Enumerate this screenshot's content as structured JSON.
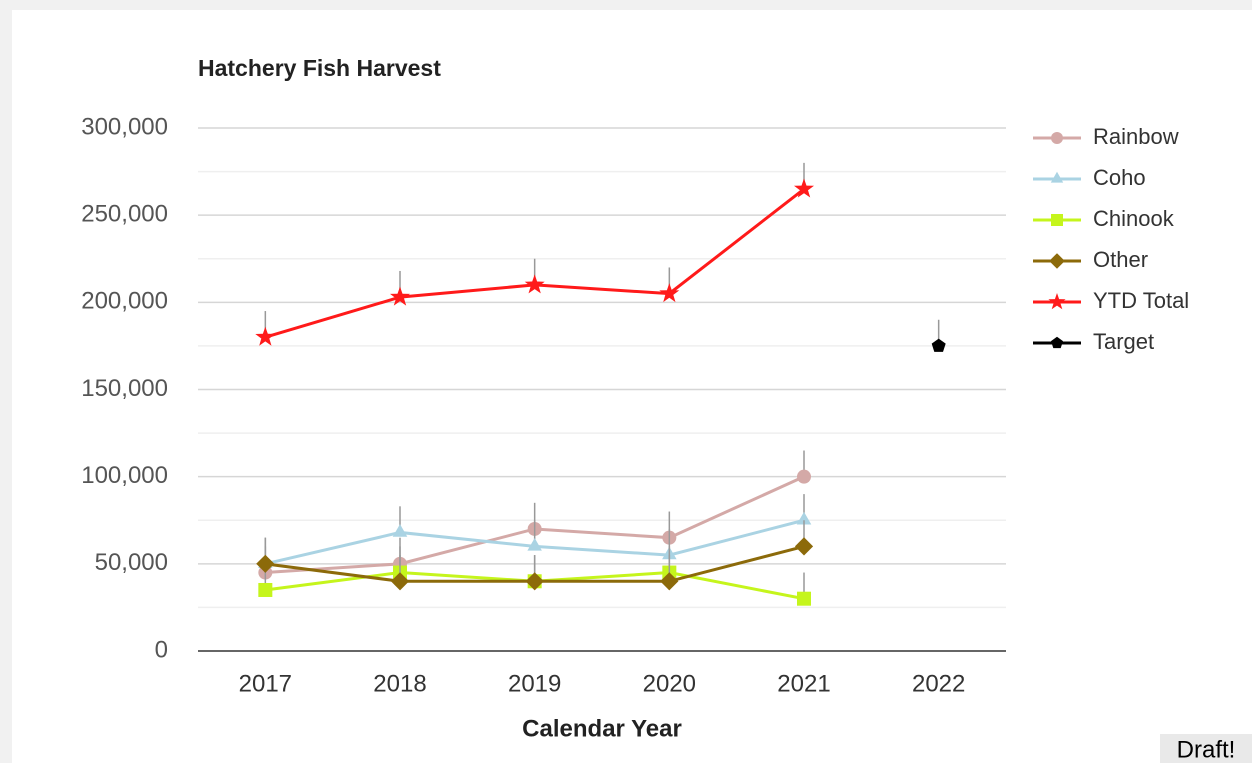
{
  "chart_data": {
    "type": "line",
    "title": "Hatchery Fish Harvest",
    "x_label": "Calendar Year",
    "categories": [
      "2017",
      "2018",
      "2019",
      "2020",
      "2021",
      "2022"
    ],
    "series": [
      {
        "name": "Rainbow",
        "color": "#d4a9a7",
        "marker": "circle",
        "values": [
          45000,
          50000,
          70000,
          65000,
          100000,
          null
        ],
        "errors": [
          15000,
          15000,
          15000,
          15000,
          15000,
          null
        ]
      },
      {
        "name": "Coho",
        "color": "#aad3e3",
        "marker": "triangle",
        "values": [
          50000,
          68000,
          60000,
          55000,
          75000,
          null
        ],
        "errors": [
          15000,
          15000,
          15000,
          15000,
          15000,
          null
        ]
      },
      {
        "name": "Chinook",
        "color": "#c5f51c",
        "marker": "square",
        "values": [
          35000,
          45000,
          40000,
          45000,
          30000,
          null
        ],
        "errors": [
          15000,
          15000,
          15000,
          15000,
          15000,
          null
        ]
      },
      {
        "name": "Other",
        "color": "#8c6a0a",
        "marker": "diamond",
        "values": [
          50000,
          40000,
          40000,
          40000,
          60000,
          null
        ],
        "errors": [
          15000,
          15000,
          15000,
          15000,
          15000,
          null
        ]
      },
      {
        "name": "YTD Total",
        "color": "#ff1a1a",
        "marker": "star",
        "values": [
          180000,
          203000,
          210000,
          205000,
          265000,
          null
        ],
        "errors": [
          15000,
          15000,
          15000,
          15000,
          15000,
          null
        ]
      },
      {
        "name": "Target",
        "color": "#000000",
        "marker": "pentagon",
        "values": [
          null,
          null,
          null,
          null,
          null,
          175000
        ],
        "errors": [
          null,
          null,
          null,
          null,
          null,
          15000
        ]
      }
    ],
    "ylim": [
      0,
      300000
    ],
    "yticks": [
      {
        "value": 0,
        "label": "0"
      },
      {
        "value": 50000,
        "label": "50,000"
      },
      {
        "value": 100000,
        "label": "100,000"
      },
      {
        "value": 150000,
        "label": "150,000"
      },
      {
        "value": 200000,
        "label": "200,000"
      },
      {
        "value": 250000,
        "label": "250,000"
      },
      {
        "value": 300000,
        "label": "300,000"
      }
    ],
    "minor_yticks": [
      25000,
      75000,
      125000,
      175000,
      225000,
      275000
    ],
    "grid": true,
    "legend": "right"
  },
  "watermark": "Draft!"
}
